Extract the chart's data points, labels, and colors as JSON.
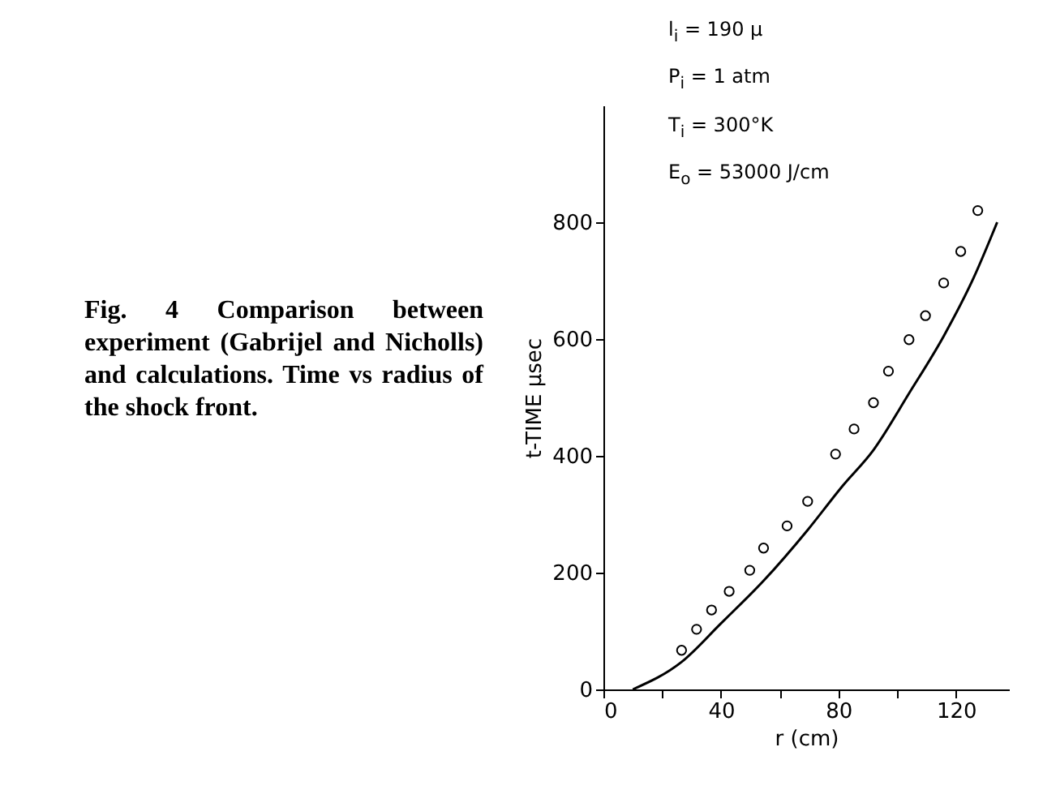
{
  "chart_data": {
    "type": "scatter",
    "xlabel": "r (cm)",
    "ylabel": "t-TIME μsec",
    "annotations": [
      "Fig. 4 Comparison between experiment (Gabrijel and Nicholls) and calculations. Time vs radius of the shock front.",
      "l$_{i}$ = 190 μ",
      "P$_{i}$ = 1 atm",
      "T$_{i}$ = 300°K",
      "E$_{o}$ = 53000 J/cm"
    ],
    "xlim": [
      0,
      138
    ],
    "ylim": [
      0,
      1000
    ],
    "xticks": [
      0,
      {
        "value": 20,
        "label": null
      },
      40,
      {
        "value": 60,
        "label": null
      },
      80,
      {
        "value": 100,
        "label": null
      },
      120
    ],
    "yticks": [
      0,
      200,
      400,
      600,
      800
    ],
    "grid": false,
    "series": [
      {
        "marker": "circle",
        "color": "#000000",
        "x": [
          26.6,
          31.7,
          36.8,
          42.8,
          49.8,
          54.5,
          62.5,
          69.5,
          79,
          85.3,
          91.9,
          97,
          104,
          109.6,
          115.8,
          121.6,
          127.4
        ],
        "values": [
          67,
          103,
          136,
          168,
          204,
          242,
          280,
          322,
          403,
          446,
          491,
          545,
          599,
          640,
          696,
          750,
          820
        ]
      },
      {
        "type": "line",
        "line_style": "solid",
        "color": "#000000",
        "x": [
          10,
          26.6,
          40,
          54.5,
          69.5,
          81.3,
          91.9,
          104,
          115.8,
          126,
          134
        ],
        "values": [
          0,
          47,
          113,
          186,
          273,
          348,
          410,
          507,
          605,
          705,
          800
        ]
      }
    ]
  }
}
